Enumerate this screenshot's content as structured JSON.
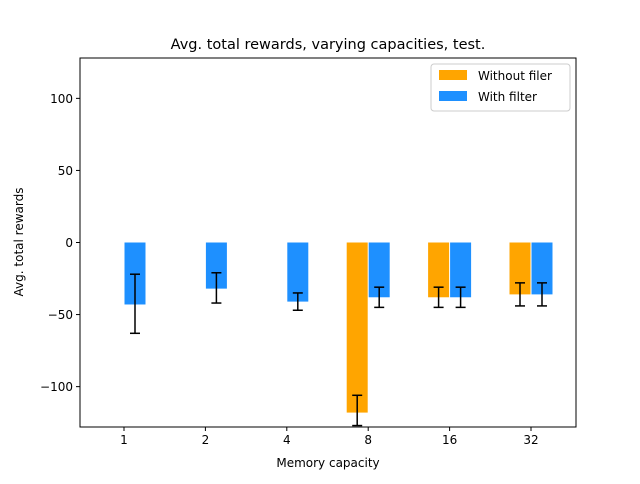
{
  "chart_data": {
    "type": "bar",
    "title": "Avg. total rewards, varying capacities, test.",
    "xlabel": "Memory capacity",
    "ylabel": "Avg. total rewards",
    "categories": [
      "1",
      "2",
      "4",
      "8",
      "16",
      "32"
    ],
    "ylim": [
      -128,
      128
    ],
    "yticks": [
      -100,
      -50,
      0,
      50,
      100
    ],
    "ytick_labels": [
      "−100",
      "−50",
      "0",
      "50",
      "100"
    ],
    "legend_position": "top-right",
    "series": [
      {
        "name": "Without filer",
        "color": "#FFA500",
        "values": [
          null,
          null,
          null,
          -118,
          -38,
          -36
        ],
        "err_low": [
          null,
          null,
          null,
          -127,
          -45,
          -44
        ],
        "err_high": [
          null,
          null,
          null,
          -106,
          -31,
          -28
        ]
      },
      {
        "name": "With filter",
        "color": "#1E90FF",
        "values": [
          -43,
          -32,
          -41,
          -38,
          -38,
          -36
        ],
        "err_low": [
          -63,
          -42,
          -47,
          -45,
          -45,
          -44
        ],
        "err_high": [
          -22,
          -21,
          -35,
          -31,
          -31,
          -28
        ]
      }
    ]
  }
}
